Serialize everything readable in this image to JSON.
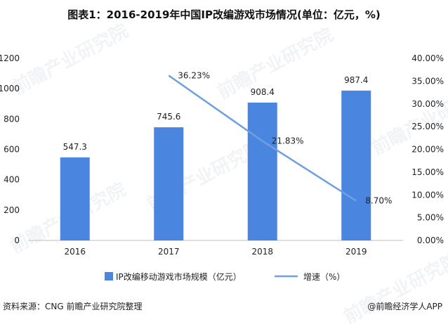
{
  "title": "图表1：2016-2019年中国IP改编游戏市场情况(单位：亿元，%)",
  "footer": {
    "source": "资料来源：CNG 前瞻产业研究院整理",
    "brand": "@前瞻经济学人APP"
  },
  "watermark": "前瞻产业研究院",
  "colors": {
    "bar": "#4a86e0",
    "line": "#6f9fdf",
    "axis": "#bfbfbf",
    "text": "#222222"
  },
  "chart_data": {
    "type": "bar",
    "categories": [
      "2016",
      "2017",
      "2018",
      "2019"
    ],
    "series": [
      {
        "name": "IP改编移动游戏市场规模（亿元）",
        "type": "bar",
        "axis": "left",
        "values": [
          547.3,
          745.6,
          908.4,
          987.4
        ],
        "labels": [
          "547.3",
          "745.6",
          "908.4",
          "987.4"
        ]
      },
      {
        "name": "增速（%）",
        "type": "line",
        "axis": "right",
        "x": [
          "2017",
          "2018",
          "2019"
        ],
        "values": [
          36.23,
          21.83,
          8.7
        ],
        "labels": [
          "36.23%",
          "21.83%",
          "8.70%"
        ]
      }
    ],
    "y_left": {
      "min": 0,
      "max": 1200,
      "step": 200,
      "ticks": [
        "0",
        "200",
        "400",
        "600",
        "800",
        "1000",
        "1200"
      ]
    },
    "y_right": {
      "min": 0,
      "max": 40,
      "step": 5,
      "ticks": [
        "0.00%",
        "5.00%",
        "10.00%",
        "15.00%",
        "20.00%",
        "25.00%",
        "30.00%",
        "35.00%",
        "40.00%"
      ]
    },
    "legend_position": "bottom",
    "grid": false
  }
}
